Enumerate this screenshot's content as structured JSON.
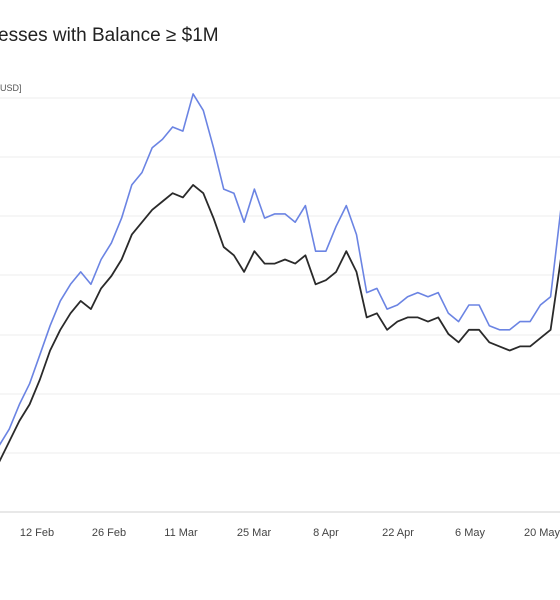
{
  "title": "esses with Balance ≥ $1M",
  "unit_label": "USD]",
  "colors": {
    "series_primary": "#6b84e3",
    "series_secondary": "#2a2a2a",
    "grid": "#ececec",
    "axis": "#d0d0d0"
  },
  "chart_data": {
    "type": "line",
    "title": "esses with Balance ≥ $1M",
    "xlabel": "",
    "ylabel": "USD]",
    "x_ticks": [
      "12 Feb",
      "26 Feb",
      "11 Mar",
      "25 Mar",
      "8 Apr",
      "22 Apr",
      "6 May",
      "20 May"
    ],
    "grid": true,
    "legend": "none",
    "x_range": [
      "2024-02-01",
      "2024-05-24"
    ],
    "ylim": [
      0,
      100
    ],
    "series": [
      {
        "color": "#6b84e3",
        "points": [
          [
            "2024-02-01",
            16
          ],
          [
            "2024-02-03",
            20
          ],
          [
            "2024-02-05",
            26
          ],
          [
            "2024-02-07",
            31
          ],
          [
            "2024-02-09",
            38
          ],
          [
            "2024-02-11",
            45
          ],
          [
            "2024-02-13",
            51
          ],
          [
            "2024-02-15",
            55
          ],
          [
            "2024-02-17",
            58
          ],
          [
            "2024-02-19",
            55
          ],
          [
            "2024-02-21",
            61
          ],
          [
            "2024-02-23",
            65
          ],
          [
            "2024-02-25",
            71
          ],
          [
            "2024-02-27",
            79
          ],
          [
            "2024-02-29",
            82
          ],
          [
            "2024-03-02",
            88
          ],
          [
            "2024-03-04",
            90
          ],
          [
            "2024-03-06",
            93
          ],
          [
            "2024-03-08",
            92
          ],
          [
            "2024-03-10",
            101
          ],
          [
            "2024-03-12",
            97
          ],
          [
            "2024-03-14",
            88
          ],
          [
            "2024-03-16",
            78
          ],
          [
            "2024-03-18",
            77
          ],
          [
            "2024-03-20",
            70
          ],
          [
            "2024-03-22",
            78
          ],
          [
            "2024-03-24",
            71
          ],
          [
            "2024-03-26",
            72
          ],
          [
            "2024-03-28",
            72
          ],
          [
            "2024-03-30",
            70
          ],
          [
            "2024-04-01",
            74
          ],
          [
            "2024-04-03",
            63
          ],
          [
            "2024-04-05",
            63
          ],
          [
            "2024-04-07",
            69
          ],
          [
            "2024-04-09",
            74
          ],
          [
            "2024-04-11",
            67
          ],
          [
            "2024-04-13",
            53
          ],
          [
            "2024-04-15",
            54
          ],
          [
            "2024-04-17",
            49
          ],
          [
            "2024-04-19",
            50
          ],
          [
            "2024-04-21",
            52
          ],
          [
            "2024-04-23",
            53
          ],
          [
            "2024-04-25",
            52
          ],
          [
            "2024-04-27",
            53
          ],
          [
            "2024-04-29",
            48
          ],
          [
            "2024-05-01",
            46
          ],
          [
            "2024-05-03",
            50
          ],
          [
            "2024-05-05",
            50
          ],
          [
            "2024-05-07",
            45
          ],
          [
            "2024-05-09",
            44
          ],
          [
            "2024-05-11",
            44
          ],
          [
            "2024-05-13",
            46
          ],
          [
            "2024-05-15",
            46
          ],
          [
            "2024-05-17",
            50
          ],
          [
            "2024-05-19",
            52
          ],
          [
            "2024-05-21",
            73
          ],
          [
            "2024-05-23",
            77
          ],
          [
            "2024-05-24",
            78
          ]
        ]
      },
      {
        "color": "#2a2a2a",
        "points": [
          [
            "2024-02-01",
            12
          ],
          [
            "2024-02-03",
            17
          ],
          [
            "2024-02-05",
            22
          ],
          [
            "2024-02-07",
            26
          ],
          [
            "2024-02-09",
            32
          ],
          [
            "2024-02-11",
            39
          ],
          [
            "2024-02-13",
            44
          ],
          [
            "2024-02-15",
            48
          ],
          [
            "2024-02-17",
            51
          ],
          [
            "2024-02-19",
            49
          ],
          [
            "2024-02-21",
            54
          ],
          [
            "2024-02-23",
            57
          ],
          [
            "2024-02-25",
            61
          ],
          [
            "2024-02-27",
            67
          ],
          [
            "2024-02-29",
            70
          ],
          [
            "2024-03-02",
            73
          ],
          [
            "2024-03-04",
            75
          ],
          [
            "2024-03-06",
            77
          ],
          [
            "2024-03-08",
            76
          ],
          [
            "2024-03-10",
            79
          ],
          [
            "2024-03-12",
            77
          ],
          [
            "2024-03-14",
            71
          ],
          [
            "2024-03-16",
            64
          ],
          [
            "2024-03-18",
            62
          ],
          [
            "2024-03-20",
            58
          ],
          [
            "2024-03-22",
            63
          ],
          [
            "2024-03-24",
            60
          ],
          [
            "2024-03-26",
            60
          ],
          [
            "2024-03-28",
            61
          ],
          [
            "2024-03-30",
            60
          ],
          [
            "2024-04-01",
            62
          ],
          [
            "2024-04-03",
            55
          ],
          [
            "2024-04-05",
            56
          ],
          [
            "2024-04-07",
            58
          ],
          [
            "2024-04-09",
            63
          ],
          [
            "2024-04-11",
            58
          ],
          [
            "2024-04-13",
            47
          ],
          [
            "2024-04-15",
            48
          ],
          [
            "2024-04-17",
            44
          ],
          [
            "2024-04-19",
            46
          ],
          [
            "2024-04-21",
            47
          ],
          [
            "2024-04-23",
            47
          ],
          [
            "2024-04-25",
            46
          ],
          [
            "2024-04-27",
            47
          ],
          [
            "2024-04-29",
            43
          ],
          [
            "2024-05-01",
            41
          ],
          [
            "2024-05-03",
            44
          ],
          [
            "2024-05-05",
            44
          ],
          [
            "2024-05-07",
            41
          ],
          [
            "2024-05-09",
            40
          ],
          [
            "2024-05-11",
            39
          ],
          [
            "2024-05-13",
            40
          ],
          [
            "2024-05-15",
            40
          ],
          [
            "2024-05-17",
            42
          ],
          [
            "2024-05-19",
            44
          ],
          [
            "2024-05-21",
            61
          ],
          [
            "2024-05-23",
            63
          ],
          [
            "2024-05-24",
            63
          ]
        ]
      }
    ]
  }
}
